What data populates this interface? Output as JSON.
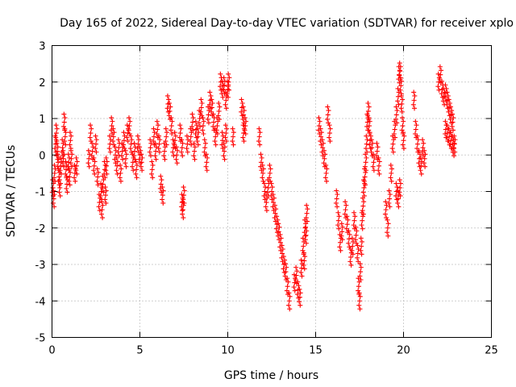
{
  "chart_data": {
    "type": "scatter",
    "title": "Day 165 of 2022, Sidereal Day-to-day VTEC variation (SDTVAR) for receiver xplo",
    "xlabel": "GPS time / hours",
    "ylabel": "SDTVAR / TECUs",
    "xlim": [
      0,
      25
    ],
    "ylim": [
      -5,
      3
    ],
    "xticks": [
      0,
      5,
      10,
      15,
      20,
      25
    ],
    "yticks": [
      -5,
      -4,
      -3,
      -2,
      -1,
      0,
      1,
      2,
      3
    ],
    "grid": true,
    "marker": "+",
    "color": "#ff0000",
    "series": [
      {
        "name": "SDTVAR",
        "points": [
          [
            0.05,
            -0.9
          ],
          [
            0.1,
            -1.2
          ],
          [
            0.15,
            -0.5
          ],
          [
            0.2,
            0.3
          ],
          [
            0.25,
            0.6
          ],
          [
            0.3,
            0.1
          ],
          [
            0.35,
            -0.2
          ],
          [
            0.4,
            -0.6
          ],
          [
            0.45,
            -0.9
          ],
          [
            0.5,
            -0.3
          ],
          [
            0.6,
            0.2
          ],
          [
            0.65,
            -0.1
          ],
          [
            0.7,
            0.9
          ],
          [
            0.75,
            0.5
          ],
          [
            0.8,
            -0.4
          ],
          [
            0.85,
            -0.8
          ],
          [
            0.95,
            -0.2
          ],
          [
            1.0,
            -0.6
          ],
          [
            1.05,
            0.4
          ],
          [
            1.1,
            -0.1
          ],
          [
            1.3,
            -0.5
          ],
          [
            1.4,
            -0.3
          ],
          [
            2.1,
            -0.1
          ],
          [
            2.2,
            0.6
          ],
          [
            2.3,
            0.1
          ],
          [
            2.4,
            -0.3
          ],
          [
            2.5,
            0.3
          ],
          [
            2.6,
            -0.6
          ],
          [
            2.7,
            -1.3
          ],
          [
            2.8,
            -1.0
          ],
          [
            2.85,
            -1.5
          ],
          [
            2.9,
            -0.8
          ],
          [
            3.0,
            -0.4
          ],
          [
            3.05,
            -1.1
          ],
          [
            3.1,
            -0.3
          ],
          [
            3.3,
            0.3
          ],
          [
            3.4,
            0.8
          ],
          [
            3.5,
            0.5
          ],
          [
            3.6,
            0.0
          ],
          [
            3.7,
            -0.3
          ],
          [
            3.8,
            0.2
          ],
          [
            3.9,
            -0.5
          ],
          [
            4.0,
            0.1
          ],
          [
            4.1,
            0.4
          ],
          [
            4.2,
            -0.1
          ],
          [
            4.3,
            0.6
          ],
          [
            4.4,
            0.8
          ],
          [
            4.5,
            0.3
          ],
          [
            4.6,
            -0.2
          ],
          [
            4.7,
            0.1
          ],
          [
            4.8,
            -0.4
          ],
          [
            4.9,
            0.3
          ],
          [
            5.0,
            0.0
          ],
          [
            5.1,
            -0.2
          ],
          [
            5.6,
            0.2
          ],
          [
            5.7,
            -0.4
          ],
          [
            5.8,
            0.5
          ],
          [
            5.9,
            0.1
          ],
          [
            6.0,
            0.7
          ],
          [
            6.1,
            0.3
          ],
          [
            6.2,
            -0.8
          ],
          [
            6.3,
            -1.1
          ],
          [
            6.4,
            0.1
          ],
          [
            6.5,
            0.5
          ],
          [
            6.6,
            1.4
          ],
          [
            6.7,
            1.2
          ],
          [
            6.8,
            0.8
          ],
          [
            6.9,
            0.2
          ],
          [
            7.0,
            0.4
          ],
          [
            7.1,
            0.0
          ],
          [
            7.3,
            0.6
          ],
          [
            7.4,
            0.2
          ],
          [
            7.4,
            -1.3
          ],
          [
            7.45,
            -1.5
          ],
          [
            7.5,
            -1.1
          ],
          [
            7.7,
            0.3
          ],
          [
            7.9,
            0.5
          ],
          [
            8.0,
            0.9
          ],
          [
            8.1,
            0.1
          ],
          [
            8.2,
            0.7
          ],
          [
            8.3,
            0.5
          ],
          [
            8.4,
            1.0
          ],
          [
            8.5,
            1.3
          ],
          [
            8.6,
            0.8
          ],
          [
            8.7,
            0.2
          ],
          [
            8.8,
            -0.2
          ],
          [
            8.9,
            1.1
          ],
          [
            9.0,
            1.5
          ],
          [
            9.1,
            1.3
          ],
          [
            9.2,
            0.9
          ],
          [
            9.3,
            0.5
          ],
          [
            9.4,
            0.8
          ],
          [
            9.5,
            1.2
          ],
          [
            9.6,
            2.0
          ],
          [
            9.7,
            1.8
          ],
          [
            9.8,
            1.9
          ],
          [
            9.9,
            1.5
          ],
          [
            10.0,
            1.8
          ],
          [
            10.05,
            2.0
          ],
          [
            9.7,
            0.4
          ],
          [
            9.8,
            0.1
          ],
          [
            9.9,
            0.6
          ],
          [
            10.3,
            0.5
          ],
          [
            10.8,
            1.3
          ],
          [
            10.9,
            1.1
          ],
          [
            11.0,
            0.8
          ],
          [
            10.9,
            0.6
          ],
          [
            11.8,
            0.5
          ],
          [
            11.9,
            -0.2
          ],
          [
            12.0,
            -0.5
          ],
          [
            12.1,
            -1.0
          ],
          [
            12.2,
            -1.3
          ],
          [
            12.3,
            -0.9
          ],
          [
            12.4,
            -0.5
          ],
          [
            12.5,
            -1.0
          ],
          [
            12.6,
            -1.3
          ],
          [
            12.7,
            -1.6
          ],
          [
            12.8,
            -1.9
          ],
          [
            12.9,
            -2.1
          ],
          [
            13.0,
            -2.4
          ],
          [
            13.1,
            -2.7
          ],
          [
            13.2,
            -3.0
          ],
          [
            13.3,
            -3.2
          ],
          [
            13.4,
            -3.6
          ],
          [
            13.5,
            -4.0
          ],
          [
            13.8,
            -3.5
          ],
          [
            13.9,
            -3.3
          ],
          [
            14.0,
            -3.7
          ],
          [
            14.1,
            -3.9
          ],
          [
            14.2,
            -3.1
          ],
          [
            14.3,
            -2.5
          ],
          [
            14.4,
            -2.0
          ],
          [
            14.5,
            -1.6
          ],
          [
            14.35,
            -2.9
          ],
          [
            14.45,
            -2.2
          ],
          [
            15.2,
            0.8
          ],
          [
            15.3,
            0.5
          ],
          [
            15.4,
            0.2
          ],
          [
            15.5,
            -0.1
          ],
          [
            15.6,
            -0.5
          ],
          [
            15.7,
            1.1
          ],
          [
            15.8,
            0.6
          ],
          [
            16.2,
            -1.2
          ],
          [
            16.3,
            -1.8
          ],
          [
            16.4,
            -2.4
          ],
          [
            16.5,
            -2.1
          ],
          [
            16.7,
            -1.5
          ],
          [
            16.8,
            -1.9
          ],
          [
            16.9,
            -2.3
          ],
          [
            17.0,
            -2.8
          ],
          [
            17.1,
            -2.5
          ],
          [
            17.2,
            -1.8
          ],
          [
            17.3,
            -2.2
          ],
          [
            17.4,
            -2.7
          ],
          [
            17.45,
            -3.6
          ],
          [
            17.5,
            -4.0
          ],
          [
            17.55,
            -3.2
          ],
          [
            17.6,
            -2.5
          ],
          [
            17.65,
            -1.8
          ],
          [
            17.7,
            -1.4
          ],
          [
            17.75,
            -0.9
          ],
          [
            17.8,
            -0.6
          ],
          [
            17.85,
            -0.2
          ],
          [
            17.9,
            0.3
          ],
          [
            17.95,
            0.9
          ],
          [
            18.0,
            1.2
          ],
          [
            18.05,
            0.8
          ],
          [
            18.1,
            0.4
          ],
          [
            18.2,
            0.2
          ],
          [
            18.3,
            -0.2
          ],
          [
            18.5,
            0.1
          ],
          [
            18.6,
            -0.3
          ],
          [
            19.0,
            -1.5
          ],
          [
            19.1,
            -2.0
          ],
          [
            19.2,
            -1.2
          ],
          [
            19.3,
            -0.5
          ],
          [
            19.4,
            0.3
          ],
          [
            19.5,
            0.7
          ],
          [
            19.6,
            1.1
          ],
          [
            19.7,
            1.6
          ],
          [
            19.75,
            2.2
          ],
          [
            19.8,
            2.3
          ],
          [
            19.85,
            1.9
          ],
          [
            19.9,
            1.4
          ],
          [
            19.95,
            0.8
          ],
          [
            20.0,
            0.4
          ],
          [
            19.6,
            -1.0
          ],
          [
            19.7,
            -1.2
          ],
          [
            19.8,
            -0.9
          ],
          [
            20.6,
            1.5
          ],
          [
            20.7,
            0.7
          ],
          [
            20.8,
            0.3
          ],
          [
            20.9,
            -0.1
          ],
          [
            21.0,
            -0.3
          ],
          [
            21.1,
            0.2
          ],
          [
            21.2,
            -0.1
          ],
          [
            22.0,
            2.0
          ],
          [
            22.1,
            2.2
          ],
          [
            22.2,
            1.8
          ],
          [
            22.3,
            1.6
          ],
          [
            22.4,
            1.7
          ],
          [
            22.5,
            1.5
          ],
          [
            22.6,
            1.3
          ],
          [
            22.7,
            1.1
          ],
          [
            22.8,
            0.9
          ],
          [
            22.4,
            0.7
          ],
          [
            22.5,
            0.6
          ],
          [
            22.6,
            0.5
          ],
          [
            22.7,
            0.4
          ],
          [
            22.8,
            0.3
          ],
          [
            22.85,
            0.2
          ],
          [
            22.9,
            0.3
          ]
        ]
      }
    ]
  }
}
